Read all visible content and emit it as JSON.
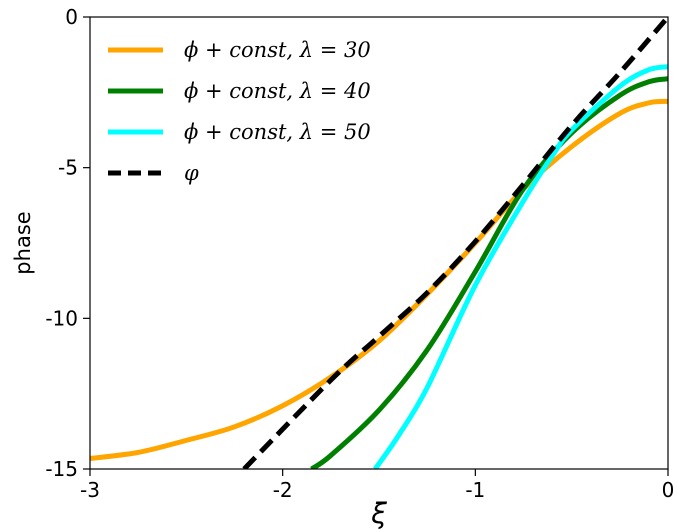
{
  "chart_data": {
    "type": "line",
    "xlabel": "ξ",
    "ylabel": "phase",
    "xlim": [
      -3,
      0
    ],
    "ylim": [
      -15,
      0
    ],
    "x_ticks": [
      -3,
      -2,
      -1,
      0
    ],
    "y_ticks": [
      0,
      -5,
      -10,
      -15
    ],
    "x_tick_labels": [
      "-3",
      "-2",
      "-1",
      "0"
    ],
    "y_tick_labels": [
      "0",
      "-5",
      "-10",
      "-15"
    ],
    "grid": false,
    "legend_position": "top-left",
    "series": [
      {
        "name": "ϕ + const,  λ = 30",
        "color": "#FFA500",
        "dash": "solid",
        "x": [
          -3.0,
          -2.75,
          -2.5,
          -2.25,
          -2.0,
          -1.75,
          -1.5,
          -1.25,
          -1.0,
          -0.75,
          -0.5,
          -0.25,
          -0.1,
          0.0
        ],
        "y": [
          -14.65,
          -14.45,
          -14.05,
          -13.6,
          -12.9,
          -11.95,
          -10.75,
          -9.2,
          -7.5,
          -5.7,
          -4.3,
          -3.2,
          -2.85,
          -2.8
        ]
      },
      {
        "name": "ϕ + const,  λ = 40",
        "color": "#008000",
        "dash": "solid",
        "x": [
          -1.85,
          -1.75,
          -1.5,
          -1.25,
          -1.0,
          -0.75,
          -0.5,
          -0.25,
          -0.1,
          0.0
        ],
        "y": [
          -15.0,
          -14.55,
          -13.05,
          -11.05,
          -8.45,
          -5.7,
          -3.85,
          -2.6,
          -2.15,
          -2.05
        ]
      },
      {
        "name": "ϕ + const,  λ = 50",
        "color": "#00FFFF",
        "dash": "solid",
        "x": [
          -1.52,
          -1.4,
          -1.25,
          -1.0,
          -0.75,
          -0.6,
          -0.5,
          -0.25,
          -0.1,
          0.0
        ],
        "y": [
          -15.0,
          -13.9,
          -12.3,
          -8.9,
          -6.1,
          -4.6,
          -3.75,
          -2.3,
          -1.75,
          -1.65
        ]
      },
      {
        "name": "φ",
        "color": "#000000",
        "dash": "dashed",
        "x": [
          -2.2,
          -1.75,
          -1.5,
          -1.25,
          -1.0,
          -0.75,
          -0.5,
          -0.25,
          0.0
        ],
        "y": [
          -15.0,
          -12.05,
          -10.6,
          -9.15,
          -7.45,
          -5.55,
          -3.6,
          -1.85,
          0.0
        ]
      }
    ]
  }
}
